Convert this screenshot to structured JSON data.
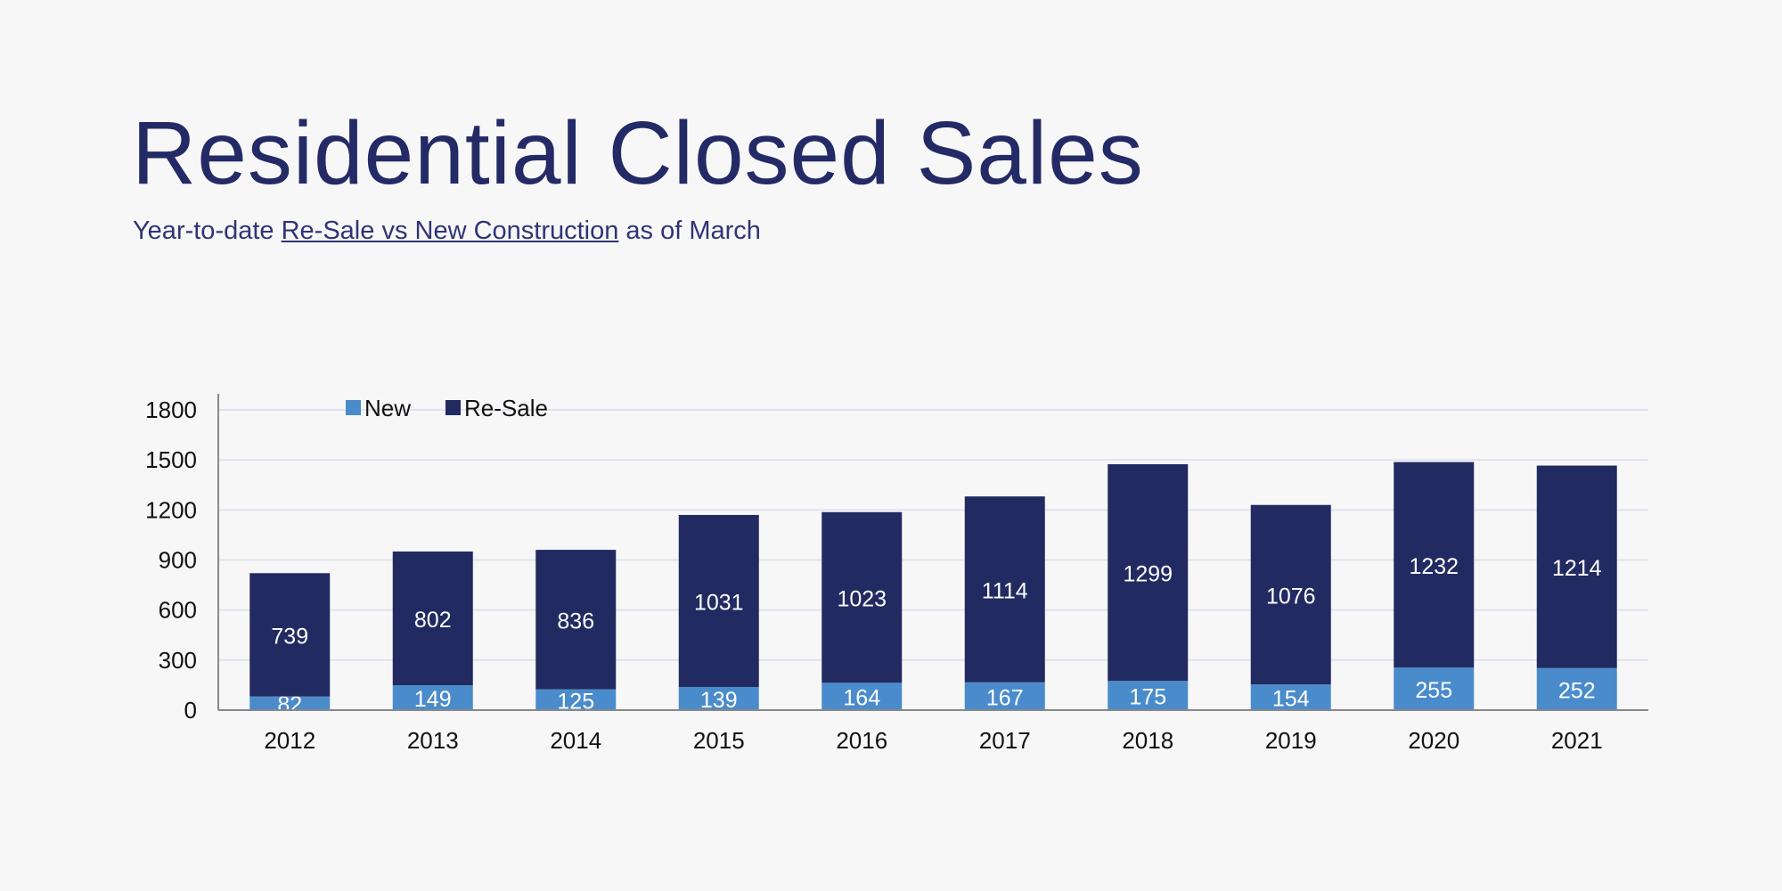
{
  "title": "Residential Closed Sales",
  "subtitle": {
    "prefix": "Year-to-date ",
    "link": "Re-Sale vs New Construction",
    "suffix": " as of March"
  },
  "chart_data": {
    "type": "bar",
    "stacked": true,
    "categories": [
      "2012",
      "2013",
      "2014",
      "2015",
      "2016",
      "2017",
      "2018",
      "2019",
      "2020",
      "2021"
    ],
    "series": [
      {
        "name": "New",
        "color": "#4a8ccb",
        "values": [
          82,
          149,
          125,
          139,
          164,
          167,
          175,
          154,
          255,
          252
        ]
      },
      {
        "name": "Re-Sale",
        "color": "#222a62",
        "values": [
          739,
          802,
          836,
          1031,
          1023,
          1114,
          1299,
          1076,
          1232,
          1214
        ]
      }
    ],
    "ylim": [
      0,
      1800
    ],
    "yticks": [
      0,
      300,
      600,
      900,
      1200,
      1500,
      1800
    ],
    "grid": true,
    "legend": "top-left",
    "data_labels": true
  }
}
